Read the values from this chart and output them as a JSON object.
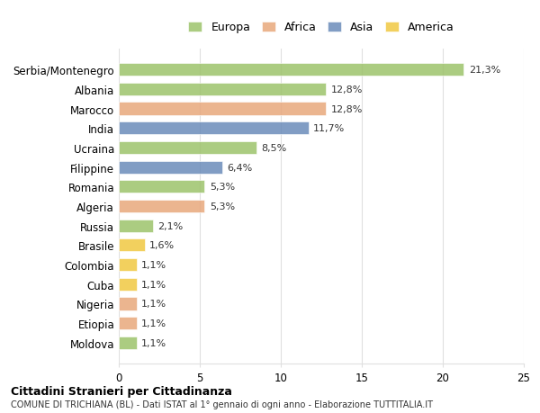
{
  "categories": [
    "Serbia/Montenegro",
    "Albania",
    "Marocco",
    "India",
    "Ucraina",
    "Filippine",
    "Romania",
    "Algeria",
    "Russia",
    "Brasile",
    "Colombia",
    "Cuba",
    "Nigeria",
    "Etiopia",
    "Moldova"
  ],
  "values": [
    21.3,
    12.8,
    12.8,
    11.7,
    8.5,
    6.4,
    5.3,
    5.3,
    2.1,
    1.6,
    1.1,
    1.1,
    1.1,
    1.1,
    1.1
  ],
  "labels": [
    "21,3%",
    "12,8%",
    "12,8%",
    "11,7%",
    "8,5%",
    "6,4%",
    "5,3%",
    "5,3%",
    "2,1%",
    "1,6%",
    "1,1%",
    "1,1%",
    "1,1%",
    "1,1%",
    "1,1%"
  ],
  "continents": [
    "Europa",
    "Europa",
    "Africa",
    "Asia",
    "Europa",
    "Asia",
    "Europa",
    "Africa",
    "Europa",
    "America",
    "America",
    "America",
    "Africa",
    "Africa",
    "Europa"
  ],
  "colors": {
    "Europa": "#9dc36b",
    "Africa": "#e8a87c",
    "Asia": "#6b8cba",
    "America": "#f0c842"
  },
  "legend_order": [
    "Europa",
    "Africa",
    "Asia",
    "America"
  ],
  "title": "Cittadini Stranieri per Cittadinanza",
  "subtitle": "COMUNE DI TRICHIANA (BL) - Dati ISTAT al 1° gennaio di ogni anno - Elaborazione TUTTITALIA.IT",
  "xlim": [
    0,
    25
  ],
  "xticks": [
    0,
    5,
    10,
    15,
    20,
    25
  ],
  "background_color": "#ffffff",
  "grid_color": "#e0e0e0",
  "bar_alpha": 0.85
}
